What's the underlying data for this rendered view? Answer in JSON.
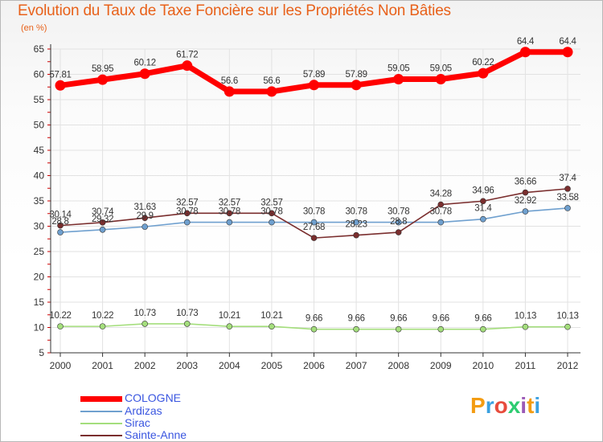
{
  "chart_data": {
    "type": "line",
    "title": "Evolution du Taux de Taxe Foncière sur les Propriétés Non Bâties",
    "unit_label": "(en %)",
    "x": [
      "2000",
      "2001",
      "2002",
      "2003",
      "2004",
      "2005",
      "2006",
      "2007",
      "2008",
      "2009",
      "2010",
      "2011",
      "2012"
    ],
    "yticks": [
      "5",
      "10",
      "15",
      "20",
      "25",
      "30",
      "35",
      "40",
      "45",
      "50",
      "55",
      "60",
      "65"
    ],
    "ylim": [
      5,
      65
    ],
    "grid": true,
    "series": [
      {
        "name": "COLOGNE",
        "color": "#ff0000",
        "values": [
          57.81,
          58.95,
          60.12,
          61.72,
          56.6,
          56.6,
          57.89,
          57.89,
          59.05,
          59.05,
          60.22,
          64.4,
          64.4
        ],
        "labels": [
          "57.81",
          "58.95",
          "60.12",
          "61.72",
          "56.6",
          "56.6",
          "57.89",
          "57.89",
          "59.05",
          "59.05",
          "60.22",
          "64.4",
          "64.4"
        ]
      },
      {
        "name": "Ardizas",
        "color": "#6fa0cf",
        "values": [
          28.8,
          29.32,
          29.9,
          30.78,
          30.78,
          30.78,
          30.78,
          30.78,
          30.78,
          30.78,
          31.4,
          32.92,
          33.58
        ],
        "labels": [
          "28.8",
          "29.32",
          "29.9",
          "30.78",
          "30.78",
          "30.78",
          "30.78",
          "30.78",
          "30.78",
          "30.78",
          "31.4",
          "32.92",
          "33.58"
        ]
      },
      {
        "name": "Sirac",
        "color": "#a4de7c",
        "values": [
          10.22,
          10.22,
          10.73,
          10.73,
          10.21,
          10.21,
          9.66,
          9.66,
          9.66,
          9.66,
          9.66,
          10.13,
          10.13
        ],
        "labels": [
          "10.22",
          "10.22",
          "10.73",
          "10.73",
          "10.21",
          "10.21",
          "9.66",
          "9.66",
          "9.66",
          "9.66",
          "9.66",
          "10.13",
          "10.13"
        ]
      },
      {
        "name": "Sainte-Anne",
        "color": "#7a2e2e",
        "values": [
          30.14,
          30.74,
          31.63,
          32.57,
          32.57,
          32.57,
          27.68,
          28.23,
          28.8,
          34.28,
          34.96,
          36.66,
          37.4
        ],
        "labels": [
          "30.14",
          "30.74",
          "31.63",
          "32.57",
          "32.57",
          "32.57",
          "27.68",
          "28.23",
          "28.8",
          "34.28",
          "34.96",
          "36.66",
          "37.4"
        ]
      }
    ]
  },
  "legend": [
    {
      "name": "COLOGNE",
      "color": "#ff0000"
    },
    {
      "name": "Ardizas",
      "color": "#6fa0cf"
    },
    {
      "name": "Sirac",
      "color": "#a4de7c"
    },
    {
      "name": "Sainte-Anne",
      "color": "#7a2e2e"
    }
  ],
  "logo": {
    "text": "Proxiti",
    "colors": [
      "#f39c12",
      "#3aa0e0",
      "#e74c3c",
      "#2ecc71",
      "#9b59b6",
      "#f39c12",
      "#3aa0e0"
    ]
  }
}
